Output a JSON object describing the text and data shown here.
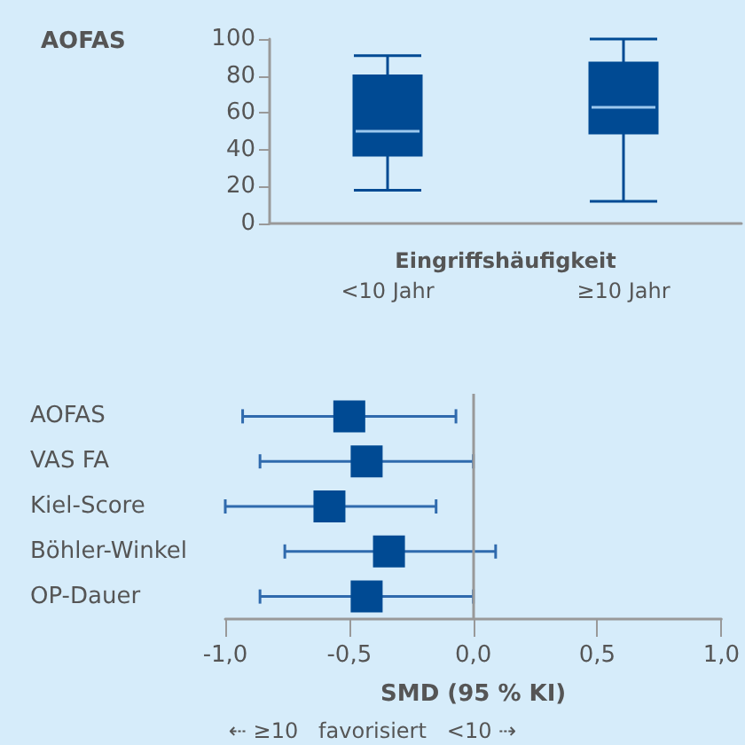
{
  "chart_data": [
    {
      "type": "box",
      "ylabel": "AOFAS",
      "xlabel": "Eingriffshäufigkeit",
      "categories": [
        "<10 Jahr",
        "≥10 Jahr"
      ],
      "color": "#004a93",
      "boxes": [
        {
          "low": 18,
          "q1": 37,
          "median": 50,
          "q3": 80,
          "high": 91
        },
        {
          "low": 12,
          "q1": 49,
          "median": 63,
          "q3": 87,
          "high": 100
        }
      ],
      "ylim": [
        0,
        100
      ],
      "yticks": [
        0,
        20,
        40,
        60,
        80,
        100
      ]
    },
    {
      "type": "scatter",
      "orientation": "horizontal",
      "marker": "square",
      "color": "#004a93",
      "xlabel": "SMD (95 % KI)",
      "categories": [
        "AOFAS",
        "VAS FA",
        "Kiel-Score",
        "Böhler-Winkel",
        "OP-Dauer"
      ],
      "values": [
        -0.5,
        -0.43,
        -0.58,
        -0.34,
        -0.43
      ],
      "errors": [
        [
          -0.93,
          -0.07
        ],
        [
          -0.86,
          0.0
        ],
        [
          -1.0,
          -0.15
        ],
        [
          -0.76,
          0.09
        ],
        [
          -0.86,
          0.0
        ]
      ],
      "xlim": [
        -1,
        1
      ],
      "xticks": [
        {
          "value": -1,
          "label": "-1,0"
        },
        {
          "value": -0.5,
          "label": "-0,5"
        },
        {
          "value": 0,
          "label": "0,0"
        },
        {
          "value": 0.5,
          "label": "0,5"
        },
        {
          "value": 1,
          "label": "1,0"
        }
      ],
      "ref_lines": [
        {
          "axis": "x",
          "value": 0,
          "color": "#999999"
        }
      ],
      "annotations": [
        "⇠ ≥10   favorisiert   <10 ⇢"
      ]
    }
  ]
}
